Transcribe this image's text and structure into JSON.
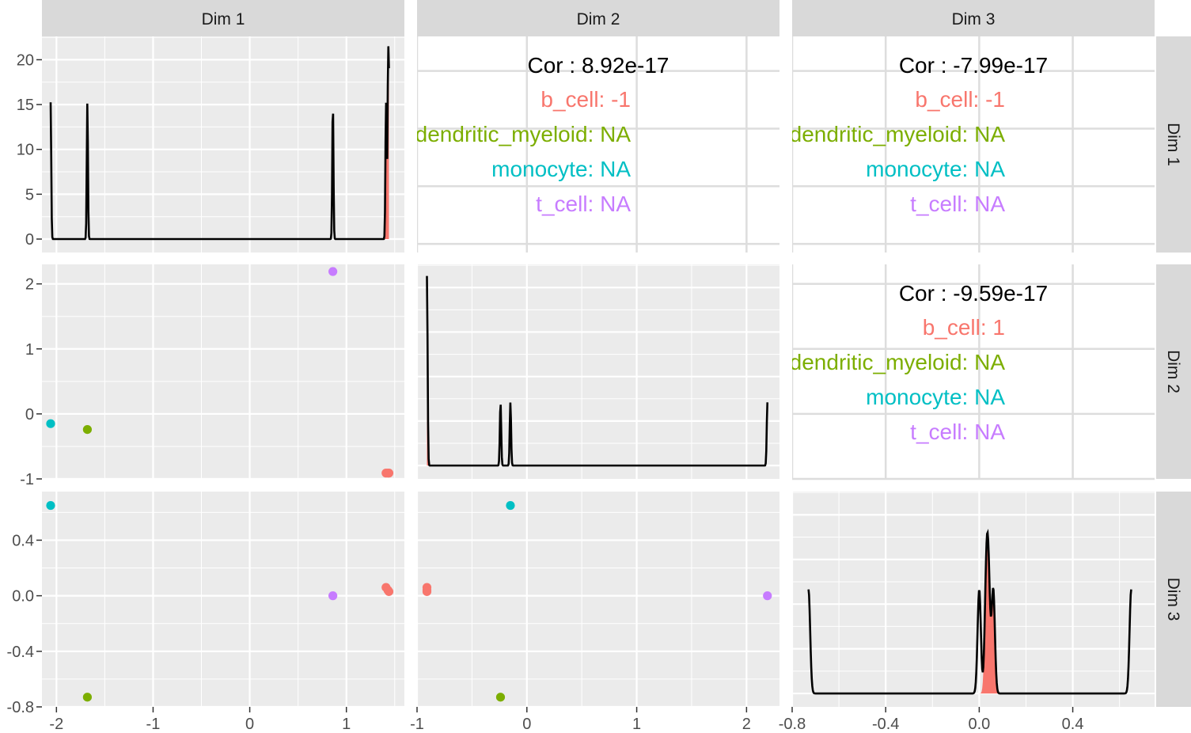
{
  "chart_data": {
    "type": "scatter",
    "plot_kind": "pairs-matrix",
    "variables": [
      "Dim 1",
      "Dim 2",
      "Dim 3"
    ],
    "groups": [
      {
        "name": "b_cell",
        "color": "#F8766D"
      },
      {
        "name": "dendritic_myeloid",
        "color": "#7CAE00"
      },
      {
        "name": "monocyte",
        "color": "#00BFC4"
      },
      {
        "name": "t_cell",
        "color": "#C77CFF"
      }
    ],
    "points": [
      {
        "group": "b_cell",
        "dim1": 1.41,
        "dim2": -0.91,
        "dim3": 0.06
      },
      {
        "group": "b_cell",
        "dim1": 1.43,
        "dim2": -0.91,
        "dim3": 0.04
      },
      {
        "group": "b_cell",
        "dim1": 1.44,
        "dim2": -0.91,
        "dim3": 0.03
      },
      {
        "group": "dendritic_myeloid",
        "dim1": -1.68,
        "dim2": -0.24,
        "dim3": -0.73
      },
      {
        "group": "monocyte",
        "dim1": -2.06,
        "dim2": -0.15,
        "dim3": 0.65
      },
      {
        "group": "t_cell",
        "dim1": 0.86,
        "dim2": 2.19,
        "dim3": 0.0
      }
    ],
    "axes": {
      "dim1": {
        "range": [
          -2.15,
          1.6
        ],
        "ticks": [
          -2,
          -1,
          0,
          1
        ],
        "tick_labels": [
          "-2",
          "-1",
          "0",
          "1"
        ]
      },
      "dim2": {
        "range": [
          -1.0,
          2.3
        ],
        "ticks": [
          -1,
          0,
          1,
          2
        ],
        "tick_labels": [
          "-1",
          "0",
          "1",
          "2"
        ]
      },
      "dim3": {
        "range": [
          -0.8,
          0.75
        ],
        "ticks": [
          -0.8,
          -0.4,
          0.0,
          0.4
        ],
        "tick_labels": [
          "-0.8",
          "-0.4",
          "0.0",
          "0.4"
        ]
      }
    },
    "density_axis": {
      "range": [
        -1.5,
        22.6
      ],
      "ticks": [
        0,
        5,
        10,
        15,
        20
      ],
      "tick_labels": [
        "0",
        "5",
        "10",
        "15",
        "20"
      ]
    },
    "correlations": [
      {
        "row": "Dim 1",
        "col": "Dim 2",
        "overall": "Cor : 8.92e-17",
        "lines": [
          {
            "group": "b_cell",
            "text": "b_cell: -1"
          },
          {
            "group": "dendritic_myeloid",
            "text": "dendritic_myeloid: NA"
          },
          {
            "group": "monocyte",
            "text": "monocyte: NA"
          },
          {
            "group": "t_cell",
            "text": "t_cell: NA"
          }
        ]
      },
      {
        "row": "Dim 1",
        "col": "Dim 3",
        "overall": "Cor : -7.99e-17",
        "lines": [
          {
            "group": "b_cell",
            "text": "b_cell: -1"
          },
          {
            "group": "dendritic_myeloid",
            "text": "dendritic_myeloid: NA"
          },
          {
            "group": "monocyte",
            "text": "monocyte: NA"
          },
          {
            "group": "t_cell",
            "text": "t_cell: NA"
          }
        ]
      },
      {
        "row": "Dim 2",
        "col": "Dim 3",
        "overall": "Cor : -9.59e-17",
        "lines": [
          {
            "group": "b_cell",
            "text": "b_cell: 1"
          },
          {
            "group": "dendritic_myeloid",
            "text": "dendritic_myeloid: NA"
          },
          {
            "group": "monocyte",
            "text": "monocyte: NA"
          },
          {
            "group": "t_cell",
            "text": "t_cell: NA"
          }
        ]
      }
    ],
    "legend": "none",
    "grid": true,
    "colors": {
      "panel_bg": "#EBEBEB",
      "grid_major": "#FFFFFF",
      "strip_bg": "#D9D9D9",
      "cor_panel_grid": "#DDDDDD",
      "density_line": "#000000"
    }
  }
}
